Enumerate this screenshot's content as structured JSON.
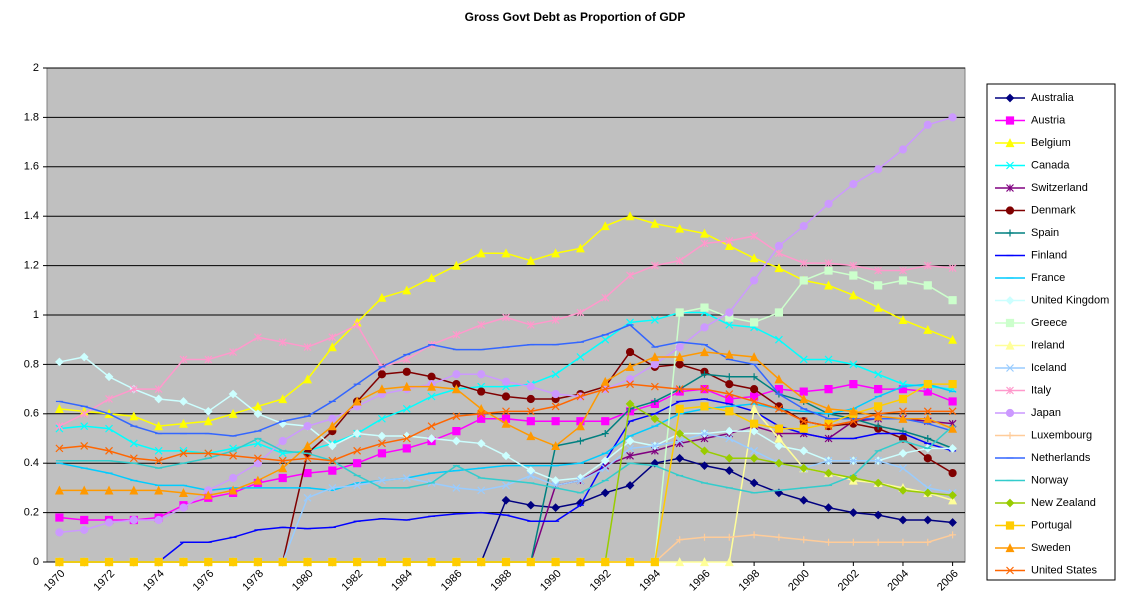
{
  "chart_data": {
    "type": "line",
    "title": "Gross Govt Debt as Proportion of GDP",
    "x": [
      1970,
      1971,
      1972,
      1973,
      1974,
      1975,
      1976,
      1977,
      1978,
      1979,
      1980,
      1981,
      1982,
      1983,
      1984,
      1985,
      1986,
      1987,
      1988,
      1989,
      1990,
      1991,
      1992,
      1993,
      1994,
      1995,
      1996,
      1997,
      1998,
      1999,
      2000,
      2001,
      2002,
      2003,
      2004,
      2005,
      2006
    ],
    "xlim": [
      1969.5,
      2006.5
    ],
    "xticks": [
      1970,
      1972,
      1974,
      1976,
      1978,
      1980,
      1982,
      1984,
      1986,
      1988,
      1990,
      1992,
      1994,
      1996,
      1998,
      2000,
      2002,
      2004,
      2006
    ],
    "ylim": [
      0,
      2
    ],
    "yticks": [
      0,
      0.2,
      0.4,
      0.6,
      0.8,
      1,
      1.2,
      1.4,
      1.6,
      1.8,
      2
    ],
    "grid": true,
    "legend": "right",
    "series": [
      {
        "name": "Australia",
        "color": "#000080",
        "marker": "diamond",
        "values": [
          0,
          0,
          0,
          0,
          0,
          0,
          0,
          0,
          0,
          0,
          0,
          0,
          0,
          0,
          0,
          0,
          0,
          0,
          0.25,
          0.23,
          0.22,
          0.24,
          0.28,
          0.31,
          0.4,
          0.42,
          0.39,
          0.37,
          0.32,
          0.28,
          0.25,
          0.22,
          0.2,
          0.19,
          0.17,
          0.17,
          0.16
        ]
      },
      {
        "name": "Austria",
        "color": "#ff00ff",
        "marker": "square",
        "values": [
          0.18,
          0.17,
          0.17,
          0.17,
          0.18,
          0.23,
          0.26,
          0.28,
          0.32,
          0.34,
          0.36,
          0.37,
          0.4,
          0.44,
          0.46,
          0.49,
          0.53,
          0.58,
          0.58,
          0.57,
          0.57,
          0.57,
          0.57,
          0.61,
          0.64,
          0.69,
          0.7,
          0.66,
          0.67,
          0.7,
          0.69,
          0.7,
          0.72,
          0.7,
          0.7,
          0.69,
          0.65
        ]
      },
      {
        "name": "Belgium",
        "color": "#ffff00",
        "marker": "triangle",
        "values": [
          0.62,
          0.61,
          0.6,
          0.59,
          0.55,
          0.56,
          0.57,
          0.6,
          0.63,
          0.66,
          0.74,
          0.87,
          0.97,
          1.07,
          1.1,
          1.15,
          1.2,
          1.25,
          1.25,
          1.22,
          1.25,
          1.27,
          1.36,
          1.4,
          1.37,
          1.35,
          1.33,
          1.28,
          1.23,
          1.19,
          1.14,
          1.12,
          1.08,
          1.03,
          0.98,
          0.94,
          0.9
        ]
      },
      {
        "name": "Canada",
        "color": "#00ffff",
        "marker": "x",
        "values": [
          0.54,
          0.55,
          0.54,
          0.48,
          0.45,
          0.45,
          0.44,
          0.46,
          0.48,
          0.44,
          0.45,
          0.48,
          0.52,
          0.58,
          0.62,
          0.67,
          0.7,
          0.71,
          0.71,
          0.72,
          0.76,
          0.83,
          0.9,
          0.97,
          0.98,
          1.01,
          1.01,
          0.96,
          0.95,
          0.9,
          0.82,
          0.82,
          0.8,
          0.76,
          0.72,
          0.71,
          0.7
        ]
      },
      {
        "name": "Switzerland",
        "color": "#800080",
        "marker": "star",
        "values": [
          0,
          0,
          0,
          0,
          0,
          0,
          0,
          0,
          0,
          0,
          0,
          0,
          0,
          0,
          0,
          0,
          0,
          0,
          0,
          0,
          0.31,
          0.33,
          0.39,
          0.43,
          0.45,
          0.48,
          0.5,
          0.52,
          0.55,
          0.52,
          0.52,
          0.5,
          0.57,
          0.58,
          0.58,
          0.57,
          0.56
        ]
      },
      {
        "name": "Denmark",
        "color": "#800000",
        "marker": "circle",
        "values": [
          0,
          0,
          0,
          0,
          0,
          0,
          0,
          0,
          0,
          0,
          0.44,
          0.53,
          0.65,
          0.76,
          0.77,
          0.75,
          0.72,
          0.69,
          0.67,
          0.66,
          0.66,
          0.68,
          0.71,
          0.85,
          0.79,
          0.8,
          0.77,
          0.72,
          0.7,
          0.63,
          0.57,
          0.55,
          0.56,
          0.54,
          0.5,
          0.42,
          0.36
        ]
      },
      {
        "name": "Spain",
        "color": "#008080",
        "marker": "plus",
        "values": [
          0,
          0,
          0,
          0,
          0,
          0,
          0,
          0,
          0,
          0,
          0,
          0,
          0,
          0,
          0,
          0,
          0,
          0,
          0,
          0,
          0.47,
          0.49,
          0.52,
          0.62,
          0.65,
          0.7,
          0.76,
          0.75,
          0.75,
          0.68,
          0.65,
          0.6,
          0.58,
          0.55,
          0.53,
          0.5,
          0.46
        ]
      },
      {
        "name": "Finland",
        "color": "#0000ff",
        "marker": "dash",
        "values": [
          0,
          0,
          0,
          0,
          0,
          0.08,
          0.08,
          0.1,
          0.13,
          0.14,
          0.135,
          0.14,
          0.165,
          0.175,
          0.17,
          0.185,
          0.195,
          0.2,
          0.19,
          0.165,
          0.165,
          0.23,
          0.41,
          0.57,
          0.6,
          0.65,
          0.66,
          0.64,
          0.61,
          0.55,
          0.52,
          0.5,
          0.5,
          0.52,
          0.52,
          0.48,
          0.45
        ]
      },
      {
        "name": "France",
        "color": "#00ccff",
        "marker": "dash",
        "values": [
          0.4,
          0.38,
          0.36,
          0.33,
          0.31,
          0.31,
          0.29,
          0.3,
          0.3,
          0.3,
          0.3,
          0.29,
          0.32,
          0.33,
          0.34,
          0.36,
          0.37,
          0.38,
          0.39,
          0.39,
          0.39,
          0.4,
          0.44,
          0.51,
          0.55,
          0.6,
          0.62,
          0.63,
          0.64,
          0.62,
          0.61,
          0.6,
          0.62,
          0.67,
          0.71,
          0.72,
          0.69
        ]
      },
      {
        "name": "United Kingdom",
        "color": "#ccffff",
        "marker": "diamond",
        "values": [
          0.81,
          0.83,
          0.75,
          0.7,
          0.66,
          0.65,
          0.61,
          0.68,
          0.6,
          0.56,
          0.55,
          0.47,
          0.52,
          0.51,
          0.51,
          0.5,
          0.49,
          0.48,
          0.43,
          0.37,
          0.33,
          0.34,
          0.41,
          0.49,
          0.47,
          0.52,
          0.52,
          0.53,
          0.53,
          0.47,
          0.45,
          0.41,
          0.41,
          0.41,
          0.44,
          0.46,
          0.46
        ]
      },
      {
        "name": "Greece",
        "color": "#ccffcc",
        "marker": "square",
        "values": [
          0,
          0,
          0,
          0,
          0,
          0,
          0,
          0,
          0,
          0,
          0,
          0,
          0,
          0,
          0,
          0,
          0,
          0,
          0,
          0,
          0,
          0,
          0,
          0,
          0,
          1.01,
          1.03,
          0.99,
          0.97,
          1.01,
          1.14,
          1.18,
          1.16,
          1.12,
          1.14,
          1.12,
          1.06
        ]
      },
      {
        "name": "Ireland",
        "color": "#ffff99",
        "marker": "triangle",
        "values": [
          0,
          0,
          0,
          0,
          0,
          0,
          0,
          0,
          0,
          0,
          0,
          0,
          0,
          0,
          0,
          0,
          0,
          0,
          0,
          0,
          0,
          0,
          0,
          0,
          0,
          0,
          0,
          0,
          0.62,
          0.5,
          0.38,
          0.36,
          0.33,
          0.32,
          0.3,
          0.28,
          0.25
        ]
      },
      {
        "name": "Iceland",
        "color": "#99ccff",
        "marker": "x",
        "values": [
          0,
          0,
          0,
          0,
          0,
          0,
          0,
          0,
          0,
          0,
          0.26,
          0.3,
          0.31,
          0.33,
          0.34,
          0.32,
          0.3,
          0.29,
          0.31,
          0.35,
          0.31,
          0.33,
          0.38,
          0.46,
          0.47,
          0.49,
          0.52,
          0.5,
          0.45,
          0.4,
          0.38,
          0.41,
          0.41,
          0.41,
          0.38,
          0.3,
          0.28
        ]
      },
      {
        "name": "Italy",
        "color": "#ff99cc",
        "marker": "star",
        "values": [
          0.55,
          0.6,
          0.66,
          0.7,
          0.7,
          0.82,
          0.82,
          0.85,
          0.91,
          0.89,
          0.87,
          0.91,
          0.96,
          0.79,
          0.82,
          0.88,
          0.92,
          0.96,
          0.99,
          0.96,
          0.98,
          1.01,
          1.07,
          1.16,
          1.2,
          1.22,
          1.29,
          1.3,
          1.32,
          1.25,
          1.21,
          1.21,
          1.2,
          1.18,
          1.18,
          1.2,
          1.19
        ]
      },
      {
        "name": "Japan",
        "color": "#cc99ff",
        "marker": "circle",
        "values": [
          0.12,
          0.13,
          0.16,
          0.17,
          0.17,
          0.22,
          0.29,
          0.34,
          0.4,
          0.49,
          0.55,
          0.58,
          0.63,
          0.68,
          0.7,
          0.72,
          0.76,
          0.76,
          0.73,
          0.71,
          0.68,
          0.67,
          0.7,
          0.74,
          0.8,
          0.87,
          0.95,
          1.01,
          1.14,
          1.28,
          1.36,
          1.45,
          1.53,
          1.59,
          1.67,
          1.77,
          1.8
        ]
      },
      {
        "name": "Luxembourg",
        "color": "#ffcc99",
        "marker": "plus",
        "values": [
          0,
          0,
          0,
          0,
          0,
          0,
          0,
          0,
          0,
          0,
          0,
          0,
          0,
          0,
          0,
          0,
          0,
          0,
          0,
          0,
          0,
          0,
          0,
          0,
          0,
          0.09,
          0.1,
          0.1,
          0.11,
          0.1,
          0.09,
          0.08,
          0.08,
          0.08,
          0.08,
          0.08,
          0.11
        ]
      },
      {
        "name": "Netherlands",
        "color": "#3366ff",
        "marker": "dash",
        "values": [
          0.65,
          0.63,
          0.6,
          0.55,
          0.52,
          0.52,
          0.52,
          0.51,
          0.53,
          0.57,
          0.59,
          0.65,
          0.72,
          0.79,
          0.84,
          0.88,
          0.86,
          0.86,
          0.87,
          0.88,
          0.88,
          0.89,
          0.92,
          0.96,
          0.87,
          0.89,
          0.88,
          0.82,
          0.8,
          0.68,
          0.62,
          0.58,
          0.58,
          0.58,
          0.58,
          0.56,
          0.53
        ]
      },
      {
        "name": "Norway",
        "color": "#33cccc",
        "marker": "dash",
        "values": [
          0.41,
          0.41,
          0.41,
          0.4,
          0.38,
          0.4,
          0.42,
          0.45,
          0.5,
          0.45,
          0.44,
          0.41,
          0.35,
          0.3,
          0.3,
          0.32,
          0.39,
          0.34,
          0.33,
          0.32,
          0.3,
          0.28,
          0.33,
          0.4,
          0.39,
          0.35,
          0.32,
          0.3,
          0.28,
          0.29,
          0.3,
          0.31,
          0.35,
          0.45,
          0.49,
          0.46,
          0.55
        ]
      },
      {
        "name": "New Zealand",
        "color": "#99cc00",
        "marker": "diamond",
        "values": [
          0,
          0,
          0,
          0,
          0,
          0,
          0,
          0,
          0,
          0,
          0,
          0,
          0,
          0,
          0,
          0,
          0,
          0,
          0,
          0,
          0,
          0,
          0,
          0.64,
          0.58,
          0.52,
          0.45,
          0.42,
          0.42,
          0.4,
          0.38,
          0.36,
          0.34,
          0.32,
          0.29,
          0.28,
          0.27
        ]
      },
      {
        "name": "Portugal",
        "color": "#ffcc00",
        "marker": "square",
        "values": [
          0,
          0,
          0,
          0,
          0,
          0,
          0,
          0,
          0,
          0,
          0,
          0,
          0,
          0,
          0,
          0,
          0,
          0,
          0,
          0,
          0,
          0,
          0,
          0,
          0,
          0.62,
          0.63,
          0.61,
          0.56,
          0.54,
          0.54,
          0.56,
          0.6,
          0.63,
          0.66,
          0.72,
          0.72
        ]
      },
      {
        "name": "Sweden",
        "color": "#ff9900",
        "marker": "triangle",
        "values": [
          0.29,
          0.29,
          0.29,
          0.29,
          0.29,
          0.28,
          0.27,
          0.29,
          0.33,
          0.38,
          0.47,
          0.55,
          0.65,
          0.7,
          0.71,
          0.71,
          0.7,
          0.62,
          0.56,
          0.51,
          0.47,
          0.55,
          0.73,
          0.79,
          0.83,
          0.83,
          0.85,
          0.84,
          0.83,
          0.74,
          0.66,
          0.62,
          0.61,
          0.59,
          0.58,
          0.58,
          0.54
        ]
      },
      {
        "name": "United States",
        "color": "#ff6600",
        "marker": "x",
        "values": [
          0.46,
          0.47,
          0.45,
          0.42,
          0.41,
          0.44,
          0.44,
          0.43,
          0.42,
          0.41,
          0.42,
          0.41,
          0.45,
          0.48,
          0.5,
          0.55,
          0.59,
          0.6,
          0.61,
          0.61,
          0.63,
          0.67,
          0.7,
          0.72,
          0.71,
          0.7,
          0.7,
          0.68,
          0.65,
          0.62,
          0.57,
          0.55,
          0.57,
          0.6,
          0.61,
          0.61,
          0.61
        ]
      }
    ]
  }
}
